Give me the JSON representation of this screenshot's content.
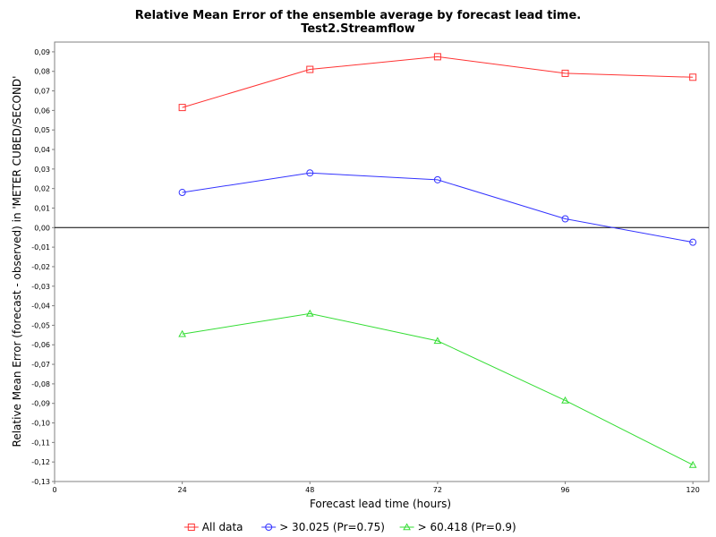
{
  "chart_data": {
    "type": "line",
    "title": "Relative Mean Error of the ensemble average by forecast lead time.",
    "subtitle": "Test2.Streamflow",
    "xlabel": "Forecast lead time (hours)",
    "ylabel": "Relative Mean Error (forecast - observed) in 'METER CUBED/SECOND'",
    "xlim": [
      0,
      123
    ],
    "ylim": [
      -0.13,
      0.095
    ],
    "x_ticks": [
      {
        "value": 0,
        "label": "0"
      },
      {
        "value": 24,
        "label": "24"
      },
      {
        "value": 48,
        "label": "48"
      },
      {
        "value": 72,
        "label": "72"
      },
      {
        "value": 96,
        "label": "96"
      },
      {
        "value": 120,
        "label": "120"
      }
    ],
    "y_ticks": [
      {
        "value": 0.09,
        "label": "0,09"
      },
      {
        "value": 0.08,
        "label": "0,08"
      },
      {
        "value": 0.07,
        "label": "0,07"
      },
      {
        "value": 0.06,
        "label": "0,06"
      },
      {
        "value": 0.05,
        "label": "0,05"
      },
      {
        "value": 0.04,
        "label": "0,04"
      },
      {
        "value": 0.03,
        "label": "0,03"
      },
      {
        "value": 0.02,
        "label": "0,02"
      },
      {
        "value": 0.01,
        "label": "0,01"
      },
      {
        "value": 0.0,
        "label": "0,00"
      },
      {
        "value": -0.01,
        "label": "-0,01"
      },
      {
        "value": -0.02,
        "label": "-0,02"
      },
      {
        "value": -0.03,
        "label": "-0,03"
      },
      {
        "value": -0.04,
        "label": "-0,04"
      },
      {
        "value": -0.05,
        "label": "-0,05"
      },
      {
        "value": -0.06,
        "label": "-0,06"
      },
      {
        "value": -0.07,
        "label": "-0,07"
      },
      {
        "value": -0.08,
        "label": "-0,08"
      },
      {
        "value": -0.09,
        "label": "-0,09"
      },
      {
        "value": -0.1,
        "label": "-0,10"
      },
      {
        "value": -0.11,
        "label": "-0,11"
      },
      {
        "value": -0.12,
        "label": "-0,12"
      },
      {
        "value": -0.13,
        "label": "-0,13"
      }
    ],
    "x": [
      24,
      48,
      72,
      96,
      120
    ],
    "series": [
      {
        "name": "All data",
        "color": "#ff3333",
        "marker": "square",
        "values": [
          0.0615,
          0.081,
          0.0875,
          0.079,
          0.077
        ]
      },
      {
        "name": "> 30.025 (Pr=0.75)",
        "color": "#3333ff",
        "marker": "circle",
        "values": [
          0.018,
          0.028,
          0.0245,
          0.0045,
          -0.0075
        ]
      },
      {
        "name": "> 60.418 (Pr=0.9)",
        "color": "#33dd33",
        "marker": "triangle",
        "values": [
          -0.0545,
          -0.044,
          -0.058,
          -0.0885,
          -0.1215
        ]
      }
    ],
    "zero_line": true,
    "grid": false,
    "legend_position": "bottom"
  }
}
